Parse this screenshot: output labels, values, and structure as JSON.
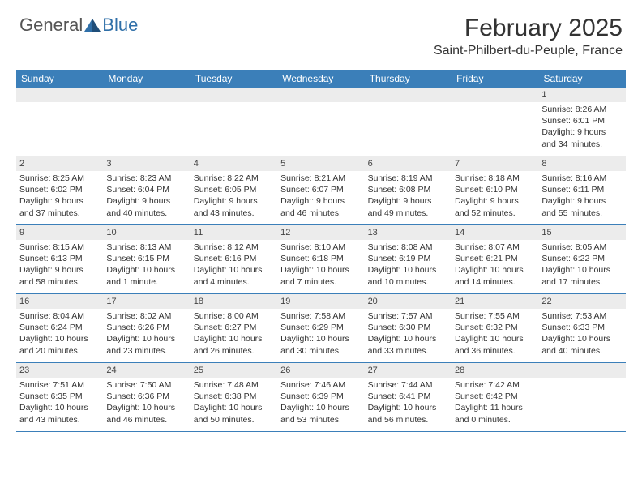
{
  "logo": {
    "text1": "General",
    "text2": "Blue"
  },
  "title": "February 2025",
  "location": "Saint-Philbert-du-Peuple, France",
  "colors": {
    "header_bg": "#3b7fb9",
    "header_text": "#ffffff",
    "daynum_bg": "#ececec",
    "row_border": "#3b7fb9",
    "text": "#333333",
    "logo_blue": "#2f6fa8",
    "logo_gray": "#555555"
  },
  "day_headers": [
    "Sunday",
    "Monday",
    "Tuesday",
    "Wednesday",
    "Thursday",
    "Friday",
    "Saturday"
  ],
  "weeks": [
    [
      null,
      null,
      null,
      null,
      null,
      null,
      {
        "n": "1",
        "sunrise": "Sunrise: 8:26 AM",
        "sunset": "Sunset: 6:01 PM",
        "day1": "Daylight: 9 hours",
        "day2": "and 34 minutes."
      }
    ],
    [
      {
        "n": "2",
        "sunrise": "Sunrise: 8:25 AM",
        "sunset": "Sunset: 6:02 PM",
        "day1": "Daylight: 9 hours",
        "day2": "and 37 minutes."
      },
      {
        "n": "3",
        "sunrise": "Sunrise: 8:23 AM",
        "sunset": "Sunset: 6:04 PM",
        "day1": "Daylight: 9 hours",
        "day2": "and 40 minutes."
      },
      {
        "n": "4",
        "sunrise": "Sunrise: 8:22 AM",
        "sunset": "Sunset: 6:05 PM",
        "day1": "Daylight: 9 hours",
        "day2": "and 43 minutes."
      },
      {
        "n": "5",
        "sunrise": "Sunrise: 8:21 AM",
        "sunset": "Sunset: 6:07 PM",
        "day1": "Daylight: 9 hours",
        "day2": "and 46 minutes."
      },
      {
        "n": "6",
        "sunrise": "Sunrise: 8:19 AM",
        "sunset": "Sunset: 6:08 PM",
        "day1": "Daylight: 9 hours",
        "day2": "and 49 minutes."
      },
      {
        "n": "7",
        "sunrise": "Sunrise: 8:18 AM",
        "sunset": "Sunset: 6:10 PM",
        "day1": "Daylight: 9 hours",
        "day2": "and 52 minutes."
      },
      {
        "n": "8",
        "sunrise": "Sunrise: 8:16 AM",
        "sunset": "Sunset: 6:11 PM",
        "day1": "Daylight: 9 hours",
        "day2": "and 55 minutes."
      }
    ],
    [
      {
        "n": "9",
        "sunrise": "Sunrise: 8:15 AM",
        "sunset": "Sunset: 6:13 PM",
        "day1": "Daylight: 9 hours",
        "day2": "and 58 minutes."
      },
      {
        "n": "10",
        "sunrise": "Sunrise: 8:13 AM",
        "sunset": "Sunset: 6:15 PM",
        "day1": "Daylight: 10 hours",
        "day2": "and 1 minute."
      },
      {
        "n": "11",
        "sunrise": "Sunrise: 8:12 AM",
        "sunset": "Sunset: 6:16 PM",
        "day1": "Daylight: 10 hours",
        "day2": "and 4 minutes."
      },
      {
        "n": "12",
        "sunrise": "Sunrise: 8:10 AM",
        "sunset": "Sunset: 6:18 PM",
        "day1": "Daylight: 10 hours",
        "day2": "and 7 minutes."
      },
      {
        "n": "13",
        "sunrise": "Sunrise: 8:08 AM",
        "sunset": "Sunset: 6:19 PM",
        "day1": "Daylight: 10 hours",
        "day2": "and 10 minutes."
      },
      {
        "n": "14",
        "sunrise": "Sunrise: 8:07 AM",
        "sunset": "Sunset: 6:21 PM",
        "day1": "Daylight: 10 hours",
        "day2": "and 14 minutes."
      },
      {
        "n": "15",
        "sunrise": "Sunrise: 8:05 AM",
        "sunset": "Sunset: 6:22 PM",
        "day1": "Daylight: 10 hours",
        "day2": "and 17 minutes."
      }
    ],
    [
      {
        "n": "16",
        "sunrise": "Sunrise: 8:04 AM",
        "sunset": "Sunset: 6:24 PM",
        "day1": "Daylight: 10 hours",
        "day2": "and 20 minutes."
      },
      {
        "n": "17",
        "sunrise": "Sunrise: 8:02 AM",
        "sunset": "Sunset: 6:26 PM",
        "day1": "Daylight: 10 hours",
        "day2": "and 23 minutes."
      },
      {
        "n": "18",
        "sunrise": "Sunrise: 8:00 AM",
        "sunset": "Sunset: 6:27 PM",
        "day1": "Daylight: 10 hours",
        "day2": "and 26 minutes."
      },
      {
        "n": "19",
        "sunrise": "Sunrise: 7:58 AM",
        "sunset": "Sunset: 6:29 PM",
        "day1": "Daylight: 10 hours",
        "day2": "and 30 minutes."
      },
      {
        "n": "20",
        "sunrise": "Sunrise: 7:57 AM",
        "sunset": "Sunset: 6:30 PM",
        "day1": "Daylight: 10 hours",
        "day2": "and 33 minutes."
      },
      {
        "n": "21",
        "sunrise": "Sunrise: 7:55 AM",
        "sunset": "Sunset: 6:32 PM",
        "day1": "Daylight: 10 hours",
        "day2": "and 36 minutes."
      },
      {
        "n": "22",
        "sunrise": "Sunrise: 7:53 AM",
        "sunset": "Sunset: 6:33 PM",
        "day1": "Daylight: 10 hours",
        "day2": "and 40 minutes."
      }
    ],
    [
      {
        "n": "23",
        "sunrise": "Sunrise: 7:51 AM",
        "sunset": "Sunset: 6:35 PM",
        "day1": "Daylight: 10 hours",
        "day2": "and 43 minutes."
      },
      {
        "n": "24",
        "sunrise": "Sunrise: 7:50 AM",
        "sunset": "Sunset: 6:36 PM",
        "day1": "Daylight: 10 hours",
        "day2": "and 46 minutes."
      },
      {
        "n": "25",
        "sunrise": "Sunrise: 7:48 AM",
        "sunset": "Sunset: 6:38 PM",
        "day1": "Daylight: 10 hours",
        "day2": "and 50 minutes."
      },
      {
        "n": "26",
        "sunrise": "Sunrise: 7:46 AM",
        "sunset": "Sunset: 6:39 PM",
        "day1": "Daylight: 10 hours",
        "day2": "and 53 minutes."
      },
      {
        "n": "27",
        "sunrise": "Sunrise: 7:44 AM",
        "sunset": "Sunset: 6:41 PM",
        "day1": "Daylight: 10 hours",
        "day2": "and 56 minutes."
      },
      {
        "n": "28",
        "sunrise": "Sunrise: 7:42 AM",
        "sunset": "Sunset: 6:42 PM",
        "day1": "Daylight: 11 hours",
        "day2": "and 0 minutes."
      },
      null
    ]
  ]
}
